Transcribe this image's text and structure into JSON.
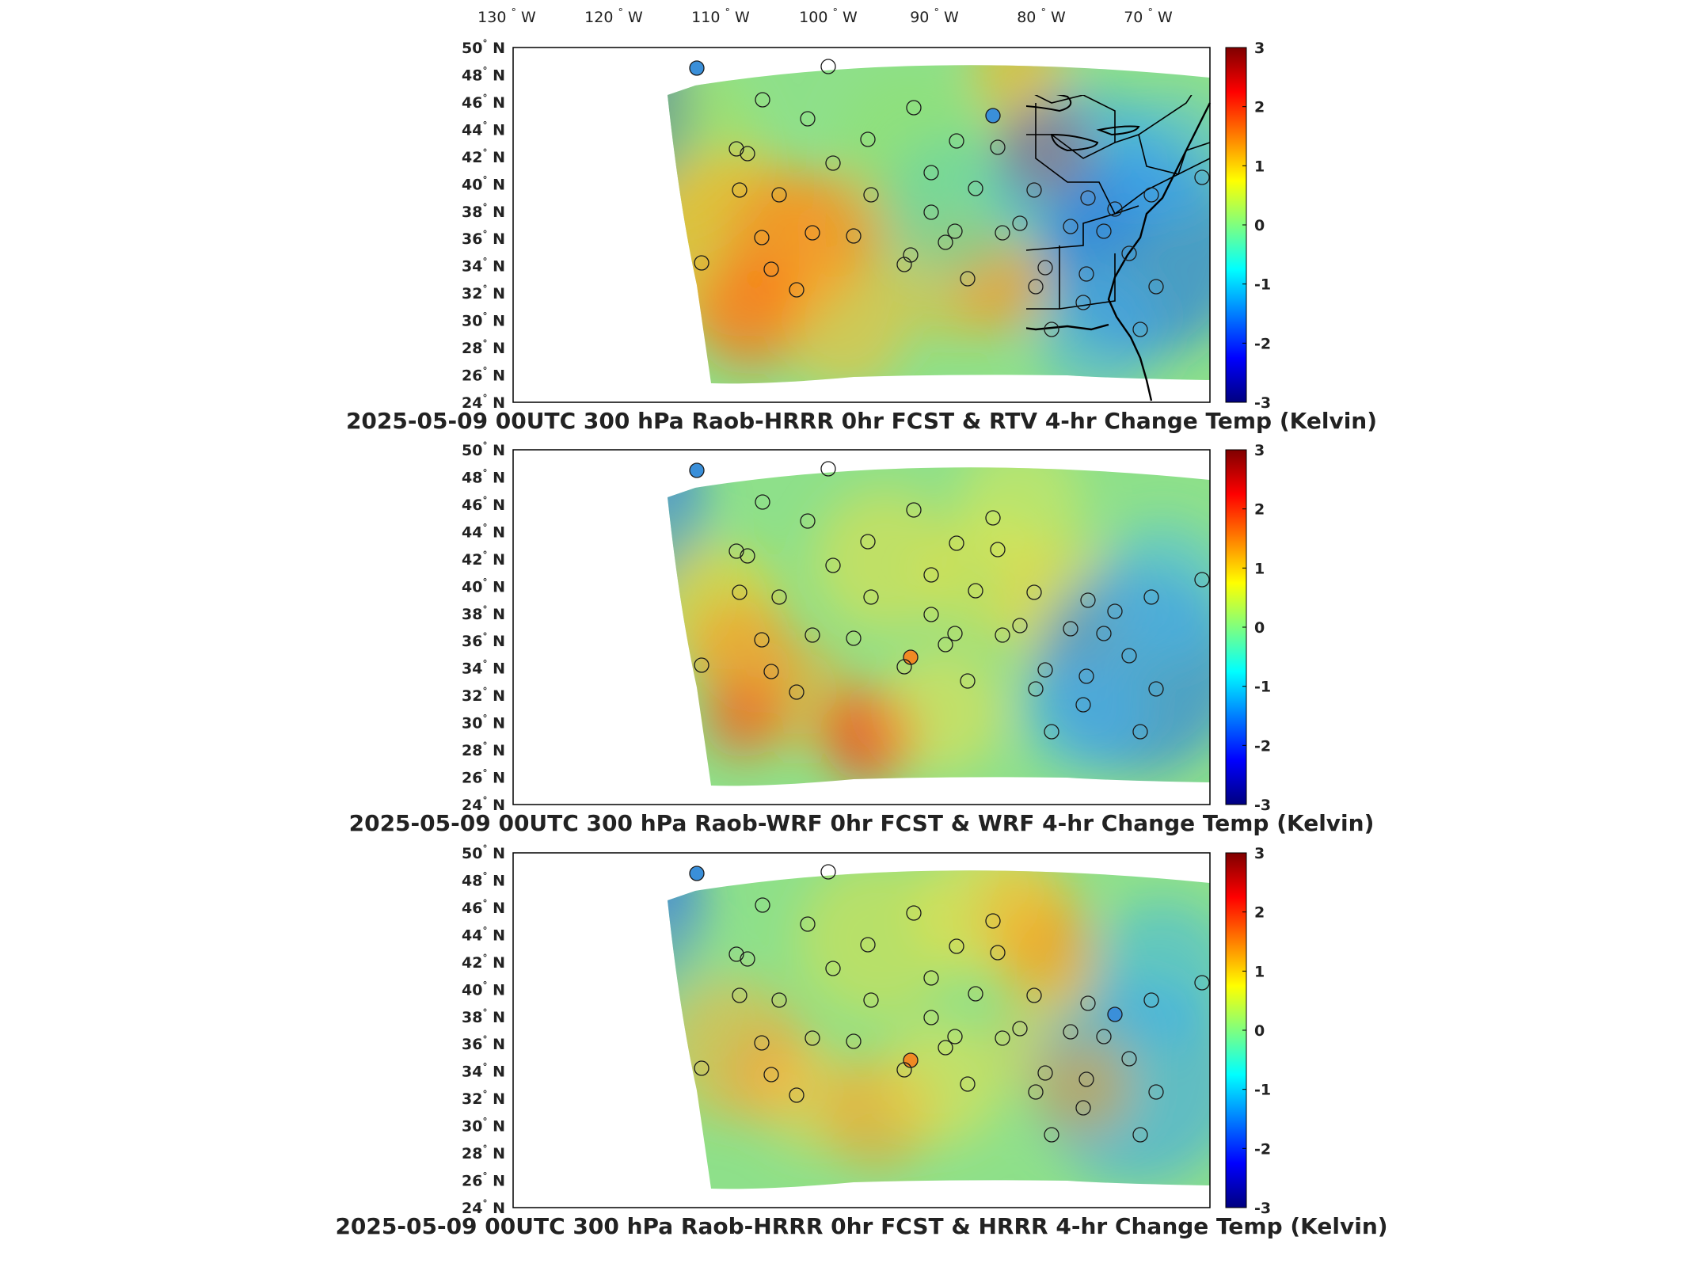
{
  "top_lon_labels": [
    "130",
    "120",
    "110",
    "100",
    "90",
    "80",
    "70"
  ],
  "lon_unit": "W",
  "lat_labels": [
    "50",
    "48",
    "46",
    "44",
    "42",
    "40",
    "38",
    "36",
    "34",
    "32",
    "30",
    "28",
    "26",
    "24"
  ],
  "lat_unit": "N",
  "degree_symbol": "°",
  "colorbar": {
    "ticks": [
      "3",
      "2",
      "1",
      "0",
      "-1",
      "-2",
      "-3"
    ],
    "range": [
      -3,
      3
    ],
    "colors": [
      "#00007f",
      "#0000ff",
      "#007fff",
      "#00ffff",
      "#7fff7f",
      "#ffff00",
      "#ff7f00",
      "#ff0000",
      "#7f0000"
    ]
  },
  "panels": [
    {
      "title": "2025-05-09 00UTC 300 hPa Raob-HRRR 0hr FCST & RTV 4-hr Change Temp (Kelvin)"
    },
    {
      "title": "2025-05-09 00UTC 300 hPa Raob-WRF 0hr FCST & WRF 4-hr Change Temp (Kelvin)"
    },
    {
      "title": "2025-05-09 00UTC 300 hPa Raob-HRRR 0hr FCST & HRRR 4-hr Change Temp (Kelvin)"
    }
  ]
}
